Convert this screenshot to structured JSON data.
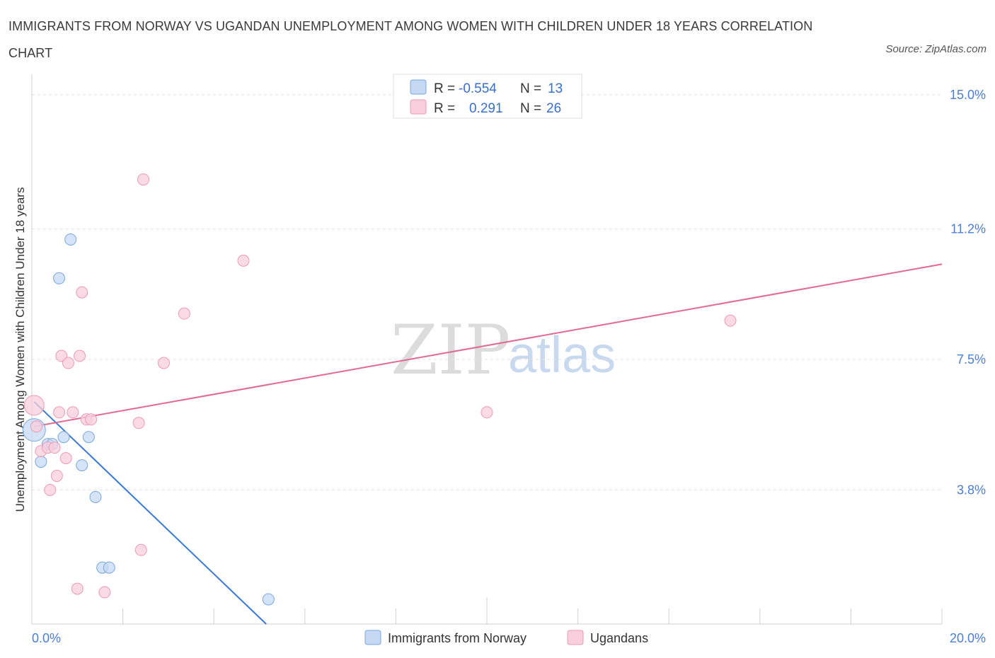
{
  "title": "IMMIGRANTS FROM NORWAY VS UGANDAN UNEMPLOYMENT AMONG WOMEN WITH CHILDREN UNDER 18 YEARS CORRELATION CHART",
  "source": "Source: ZipAtlas.com",
  "watermark": {
    "zip": "ZIP",
    "atlas": "atlas"
  },
  "legend_top": [
    {
      "r_label": "R =",
      "r_value": "-0.554",
      "n_label": "N =",
      "n_value": "13"
    },
    {
      "r_label": "R =",
      "r_value": "0.291",
      "n_label": "N =",
      "n_value": "26"
    }
  ],
  "legend_bottom": [
    "Immigrants from Norway",
    "Ugandans"
  ],
  "colors": {
    "blue_fill": "#c5d9f5",
    "blue_stroke": "#7aa6e0",
    "blue_line": "#3a7ad6",
    "pink_fill": "#f8cfdc",
    "pink_stroke": "#ee9ab5",
    "pink_line": "#e06a94"
  },
  "chart_data": {
    "type": "scatter",
    "title": "IMMIGRANTS FROM NORWAY VS UGANDAN UNEMPLOYMENT AMONG WOMEN WITH CHILDREN UNDER 18 YEARS CORRELATION CHART",
    "xlabel": "",
    "ylabel": "Unemployment Among Women with Children Under 18 years",
    "xlim": [
      0,
      20
    ],
    "ylim": [
      0,
      15
    ],
    "x_tick_labels": [
      "0.0%",
      "20.0%"
    ],
    "y_ticks": [
      3.8,
      7.5,
      11.2,
      15.0
    ],
    "y_tick_labels": [
      "3.8%",
      "7.5%",
      "11.2%",
      "15.0%"
    ],
    "grid": true,
    "series": [
      {
        "name": "Immigrants from Norway",
        "color": "blue",
        "points": [
          {
            "x": 0.05,
            "y": 5.5,
            "r": 16
          },
          {
            "x": 0.2,
            "y": 4.6
          },
          {
            "x": 0.35,
            "y": 5.1
          },
          {
            "x": 0.45,
            "y": 5.1
          },
          {
            "x": 0.6,
            "y": 9.8
          },
          {
            "x": 0.7,
            "y": 5.3
          },
          {
            "x": 0.85,
            "y": 10.9
          },
          {
            "x": 1.1,
            "y": 4.5
          },
          {
            "x": 1.25,
            "y": 5.3
          },
          {
            "x": 1.4,
            "y": 3.6
          },
          {
            "x": 1.55,
            "y": 1.6
          },
          {
            "x": 1.7,
            "y": 1.6
          },
          {
            "x": 5.2,
            "y": 0.7
          }
        ],
        "trend": {
          "x1": 0.05,
          "y1": 6.3,
          "x2": 5.15,
          "y2": 0.0
        }
      },
      {
        "name": "Ugandans",
        "color": "pink",
        "points": [
          {
            "x": 0.05,
            "y": 6.2,
            "r": 14
          },
          {
            "x": 0.2,
            "y": 4.9
          },
          {
            "x": 0.35,
            "y": 5.0
          },
          {
            "x": 0.4,
            "y": 3.8
          },
          {
            "x": 0.5,
            "y": 5.0
          },
          {
            "x": 0.55,
            "y": 4.2
          },
          {
            "x": 0.6,
            "y": 6.0
          },
          {
            "x": 0.65,
            "y": 7.6
          },
          {
            "x": 0.75,
            "y": 4.7
          },
          {
            "x": 0.8,
            "y": 7.4
          },
          {
            "x": 0.9,
            "y": 6.0
          },
          {
            "x": 1.0,
            "y": 1.0
          },
          {
            "x": 1.05,
            "y": 7.6
          },
          {
            "x": 1.1,
            "y": 9.4
          },
          {
            "x": 1.2,
            "y": 5.8
          },
          {
            "x": 1.3,
            "y": 5.8
          },
          {
            "x": 1.6,
            "y": 0.9
          },
          {
            "x": 2.35,
            "y": 5.7
          },
          {
            "x": 2.4,
            "y": 2.1
          },
          {
            "x": 2.45,
            "y": 12.6
          },
          {
            "x": 2.9,
            "y": 7.4
          },
          {
            "x": 3.35,
            "y": 8.8
          },
          {
            "x": 4.65,
            "y": 10.3
          },
          {
            "x": 10.0,
            "y": 6.0
          },
          {
            "x": 15.35,
            "y": 8.6
          },
          {
            "x": 0.1,
            "y": 5.6
          }
        ],
        "trend": {
          "x1": 0.05,
          "y1": 5.6,
          "x2": 20.0,
          "y2": 10.2
        }
      }
    ]
  }
}
